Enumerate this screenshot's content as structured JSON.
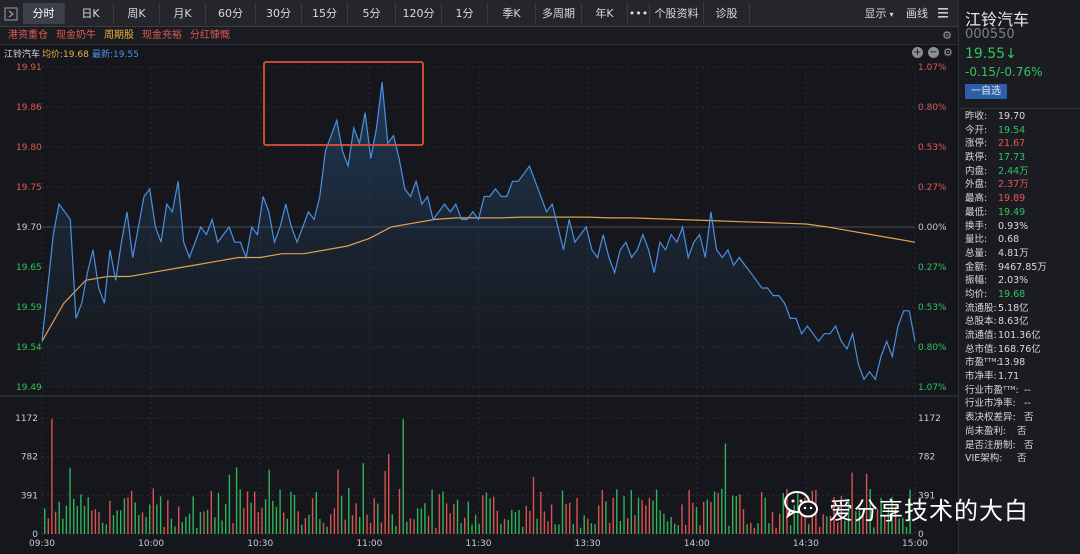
{
  "toolbar": {
    "tabs": [
      {
        "label": "分时",
        "active": true
      },
      {
        "label": "日K"
      },
      {
        "label": "周K"
      },
      {
        "label": "月K"
      },
      {
        "label": "60分"
      },
      {
        "label": "30分"
      },
      {
        "label": "15分"
      },
      {
        "label": "5分"
      },
      {
        "label": "120分"
      },
      {
        "label": "1分"
      },
      {
        "label": "季K"
      },
      {
        "label": "多周期"
      },
      {
        "label": "年K"
      },
      {
        "label": "•••"
      },
      {
        "label": "个股资料"
      },
      {
        "label": "诊股"
      }
    ],
    "display_label": "显示",
    "draw_label": "画线"
  },
  "tags": [
    "港资重仓",
    "现金奶牛",
    "周期股",
    "现金充裕",
    "分红慷慨"
  ],
  "chart_header": {
    "name": "江铃汽车",
    "avg": "均价:19.68",
    "last": "最新:19.55"
  },
  "stock": {
    "name": "江铃汽车",
    "code": "000550",
    "price": "19.55↓",
    "change": "-0.15/-0.76%",
    "watch_label": "一自选",
    "stats": [
      {
        "k": "昨收:",
        "v": "19.70",
        "c": ""
      },
      {
        "k": "今开:",
        "v": "19.54",
        "c": "green"
      },
      {
        "k": "涨停:",
        "v": "21.67",
        "c": "red"
      },
      {
        "k": "跌停:",
        "v": "17.73",
        "c": "green"
      },
      {
        "k": "内盘:",
        "v": "2.44万",
        "c": "green"
      },
      {
        "k": "外盘:",
        "v": "2.37万",
        "c": "red"
      },
      {
        "k": "最高:",
        "v": "19.89",
        "c": "red"
      },
      {
        "k": "最低:",
        "v": "19.49",
        "c": "green"
      },
      {
        "k": "换手:",
        "v": "0.93%",
        "c": ""
      },
      {
        "k": "量比:",
        "v": "0.68",
        "c": ""
      },
      {
        "k": "总量:",
        "v": "4.81万",
        "c": ""
      },
      {
        "k": "金额:",
        "v": "9467.85万",
        "c": ""
      },
      {
        "k": "振幅:",
        "v": "2.03%",
        "c": ""
      },
      {
        "k": "均价:",
        "v": "19.68",
        "c": "green"
      },
      {
        "k": "流通股:",
        "v": "5.18亿",
        "c": ""
      },
      {
        "k": "总股本:",
        "v": "8.63亿",
        "c": ""
      },
      {
        "k": "流通值:",
        "v": "101.36亿",
        "c": ""
      },
      {
        "k": "总市值:",
        "v": "168.76亿",
        "c": ""
      },
      {
        "k": "市盈ᵀᵀᴹ:",
        "v": "13.98",
        "c": ""
      },
      {
        "k": "市净率:",
        "v": "1.71",
        "c": ""
      },
      {
        "k": "行业市盈ᵀᵀᴹ:",
        "v": "--",
        "c": "",
        "w": "wide"
      },
      {
        "k": "行业市净率:",
        "v": "--",
        "c": "",
        "w": "wide"
      },
      {
        "k": "表决权差异:",
        "v": "否",
        "c": "",
        "w": "wide"
      },
      {
        "k": "尚未盈利:",
        "v": "否",
        "c": "",
        "w": "wider"
      },
      {
        "k": "是否注册制:",
        "v": "否",
        "c": "",
        "w": "wide"
      },
      {
        "k": "VIE架构:",
        "v": "否",
        "c": "",
        "w": "wider"
      }
    ]
  },
  "watermark": "爱分享技术的大白",
  "chart_data": {
    "type": "line",
    "y_left_ticks": [
      "19.91",
      "19.86",
      "19.80",
      "19.75",
      "19.70",
      "19.65",
      "19.59",
      "19.54",
      "19.49"
    ],
    "y_right_ticks": [
      "1.07%",
      "0.80%",
      "0.53%",
      "0.27%",
      "0.00%",
      "0.27%",
      "0.53%",
      "0.80%",
      "1.07%"
    ],
    "ylim": [
      19.49,
      19.91
    ],
    "prev_close": 19.7,
    "x_ticks": [
      "09:30",
      "10:00",
      "10:30",
      "11:00",
      "11:30",
      "13:30",
      "14:00",
      "14:30",
      "15:00"
    ],
    "volume_ticks": [
      "1172",
      "782",
      "391",
      "0"
    ],
    "series": [
      {
        "values": [
          19.55,
          19.62,
          19.69,
          19.73,
          19.72,
          19.71,
          19.58,
          19.6,
          19.64,
          19.67,
          19.62,
          19.6,
          19.67,
          19.63,
          19.68,
          19.72,
          19.66,
          19.7,
          19.74,
          19.75,
          19.7,
          19.68,
          19.73,
          19.72,
          19.76,
          19.68,
          19.66,
          19.68,
          19.7,
          19.69,
          19.71,
          19.68,
          19.69,
          19.7,
          19.68,
          19.68,
          19.66,
          19.7,
          19.69,
          19.74,
          19.72,
          19.68,
          19.7,
          19.73,
          19.7,
          19.68,
          19.7,
          19.72,
          19.71,
          19.74,
          19.8,
          19.82,
          19.84,
          19.8,
          19.78,
          19.83,
          19.81,
          19.85,
          19.79,
          19.83,
          19.89,
          19.81,
          19.82,
          19.79,
          19.75,
          19.74,
          19.76,
          19.73,
          19.74,
          19.71,
          19.72,
          19.73,
          19.72,
          19.73,
          19.71,
          19.71,
          19.72,
          19.71,
          19.74,
          19.74,
          19.75,
          19.74,
          19.74,
          19.76,
          19.76,
          19.77,
          19.78,
          19.76,
          19.74,
          19.72,
          19.73,
          19.7,
          19.67,
          19.71,
          19.68,
          19.69,
          19.7,
          19.67,
          19.66,
          19.69,
          19.66,
          19.64,
          19.67,
          19.68,
          19.66,
          19.67,
          19.69,
          19.67,
          19.64,
          19.68,
          19.67,
          19.69,
          19.68,
          19.7,
          19.66,
          19.68,
          19.69,
          19.66,
          19.72,
          19.67,
          19.66,
          19.67,
          19.65,
          19.66,
          19.65,
          19.64,
          19.63,
          19.62,
          19.62,
          19.61,
          19.61,
          19.6,
          19.58,
          19.58,
          19.56,
          19.57,
          19.56,
          19.55,
          19.56,
          19.56,
          19.57,
          19.55,
          19.54,
          19.56,
          19.52,
          19.5,
          19.51,
          19.5,
          19.53,
          19.55,
          19.53,
          19.57,
          19.59,
          19.59,
          19.55
        ]
      },
      {
        "values": [
          19.55,
          19.6,
          19.63,
          19.635,
          19.635,
          19.64,
          19.645,
          19.65,
          19.655,
          19.66,
          19.66,
          19.665,
          19.665,
          19.67,
          19.675,
          19.685,
          19.7,
          19.705,
          19.71,
          19.712,
          19.712,
          19.712,
          19.713,
          19.713,
          19.713,
          19.713,
          19.712,
          19.712,
          19.711,
          19.71,
          19.709,
          19.708,
          19.707,
          19.706,
          19.705,
          19.704,
          19.7,
          19.695,
          19.69,
          19.685,
          19.68
        ]
      }
    ]
  }
}
